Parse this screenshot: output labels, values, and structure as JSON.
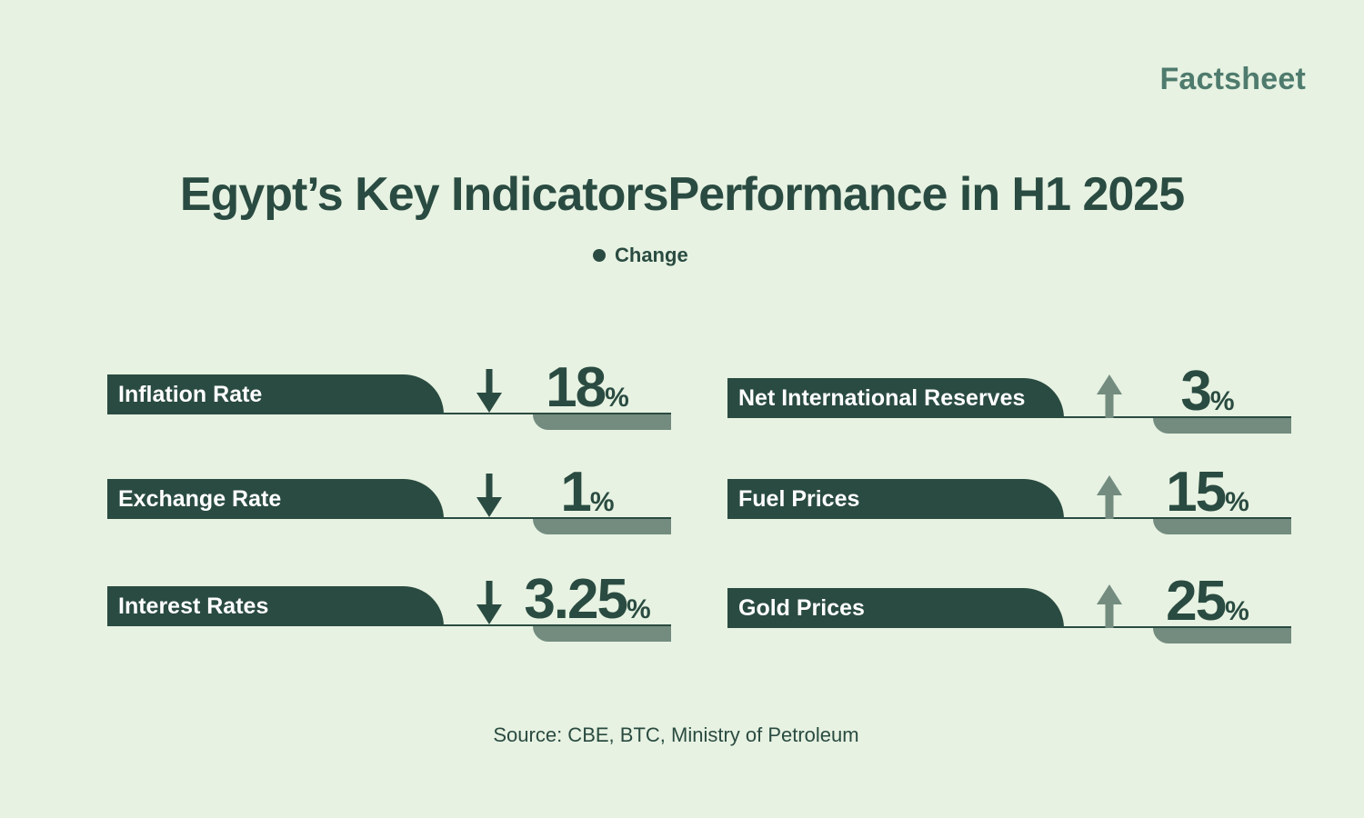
{
  "brand": "Factsheet",
  "chart_data": {
    "type": "table",
    "title": "Egypt’s Key IndicatorsPerformance in H1 2025",
    "legend": [
      "Change"
    ],
    "legend_placement": "top-center",
    "unit": "%",
    "rows": [
      {
        "label": "Inflation Rate",
        "direction": "down",
        "value": 18
      },
      {
        "label": "Exchange Rate",
        "direction": "down",
        "value": 1
      },
      {
        "label": "Interest Rates",
        "direction": "down",
        "value": 3.25
      },
      {
        "label": "Net International Reserves",
        "direction": "up",
        "value": 3
      },
      {
        "label": "Fuel Prices",
        "direction": "up",
        "value": 15
      },
      {
        "label": "Gold Prices",
        "direction": "up",
        "value": 25
      }
    ]
  },
  "colors": {
    "background": "#e7f2e2",
    "dark": "#2a4b41",
    "muted": "#738c7f",
    "brand": "#4e7b6d"
  },
  "source": "Source: CBE, BTC, Ministry of Petroleum"
}
